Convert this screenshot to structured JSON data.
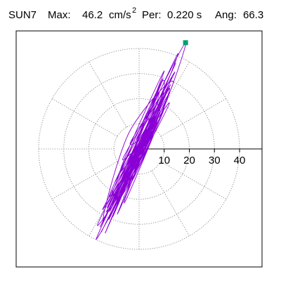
{
  "header": {
    "station": "SUN7",
    "max_label": "Max:",
    "max_value": "46.2",
    "max_unit": "cm/s",
    "max_unit_exp": "2",
    "period_label": "Per:",
    "period_value": "0.220 s",
    "angle_label": "Ang:",
    "angle_value": "66.3"
  },
  "chart_data": {
    "type": "line",
    "title": "",
    "xlabel": "",
    "ylabel": "",
    "coordinate_system": "polar",
    "radius_ticks": [
      10,
      20,
      30,
      40
    ],
    "rlim": [
      0,
      50
    ],
    "spoke_angles_deg": [
      0,
      30,
      60,
      90,
      120,
      150,
      180,
      210,
      240,
      270,
      300,
      330
    ],
    "grid": true,
    "legend": "none",
    "colors": {
      "trace": "#8a00d4",
      "marker": "#00a070",
      "axis": "#000000",
      "grid": "#777777"
    },
    "peak_point": {
      "x": 18.5,
      "y": 42.3,
      "resultant": 46.2,
      "angle_deg": 66.3
    },
    "series": [
      {
        "values": [
          [
            0.5,
            -0.8
          ],
          [
            4.5,
            8.2
          ],
          [
            -2.0,
            -6.5
          ],
          [
            7.8,
            15.0
          ],
          [
            -5.0,
            -11.5
          ],
          [
            3.2,
            4.0
          ],
          [
            -3.5,
            2.5
          ],
          [
            10.5,
            22.0
          ],
          [
            -9.5,
            -22.0
          ],
          [
            2.0,
            -2.5
          ],
          [
            12.0,
            24.0
          ],
          [
            -8.0,
            -16.0
          ],
          [
            6.0,
            12.5
          ],
          [
            -13.0,
            -25.0
          ],
          [
            5.5,
            6.0
          ],
          [
            18.5,
            42.3
          ],
          [
            -1.0,
            4.0
          ],
          [
            14.0,
            30.0
          ],
          [
            -16.5,
            -30.0
          ],
          [
            4.0,
            2.0
          ],
          [
            9.0,
            26.5
          ],
          [
            -14.0,
            -28.5
          ],
          [
            -4.0,
            6.5
          ],
          [
            13.5,
            26.0
          ],
          [
            -11.5,
            -24.5
          ],
          [
            1.5,
            3.0
          ],
          [
            11.0,
            20.0
          ],
          [
            -15.0,
            -33.0
          ],
          [
            7.0,
            11.0
          ],
          [
            -6.0,
            -17.0
          ],
          [
            15.5,
            38.0
          ],
          [
            -12.5,
            -23.0
          ],
          [
            3.0,
            8.0
          ],
          [
            -17.0,
            -36.0
          ],
          [
            12.0,
            18.0
          ],
          [
            -7.5,
            -9.0
          ],
          [
            10.0,
            31.0
          ],
          [
            -9.0,
            -19.0
          ],
          [
            6.5,
            13.0
          ],
          [
            -13.5,
            -33.5
          ],
          [
            4.5,
            9.5
          ],
          [
            -2.5,
            -3.0
          ],
          [
            14.5,
            34.0
          ],
          [
            -10.0,
            -20.0
          ],
          [
            8.5,
            18.5
          ],
          [
            -15.5,
            -31.0
          ],
          [
            3.5,
            6.5
          ],
          [
            -4.5,
            -8.0
          ],
          [
            11.5,
            23.5
          ],
          [
            -12.0,
            -28.0
          ],
          [
            6.0,
            10.0
          ],
          [
            -7.0,
            -14.0
          ],
          [
            9.5,
            28.0
          ],
          [
            -11.0,
            -18.5
          ],
          [
            5.0,
            4.5
          ],
          [
            -3.0,
            -13.0
          ],
          [
            8.0,
            14.5
          ],
          [
            -5.5,
            -19.5
          ],
          [
            13.0,
            28.5
          ],
          [
            -8.5,
            -25.5
          ],
          [
            2.5,
            1.5
          ],
          [
            -6.5,
            -4.0
          ],
          [
            7.5,
            17.5
          ],
          [
            -10.5,
            -27.0
          ],
          [
            4.0,
            12.0
          ],
          [
            -9.5,
            -13.0
          ],
          [
            12.5,
            25.5
          ],
          [
            -14.5,
            -24.0
          ],
          [
            5.5,
            8.0
          ],
          [
            -2.0,
            -9.5
          ],
          [
            10.0,
            16.0
          ],
          [
            -6.0,
            -21.5
          ],
          [
            8.0,
            22.5
          ],
          [
            -12.0,
            -19.0
          ],
          [
            3.0,
            3.5
          ],
          [
            -4.5,
            -11.0
          ],
          [
            6.5,
            9.0
          ],
          [
            -7.0,
            -17.5
          ],
          [
            4.5,
            5.5
          ],
          [
            -3.0,
            -5.5
          ],
          [
            3.5,
            7.0
          ],
          [
            -4.0,
            -7.5
          ],
          [
            2.0,
            3.0
          ],
          [
            -2.5,
            -4.5
          ],
          [
            1.5,
            2.0
          ],
          [
            -1.5,
            -3.0
          ],
          [
            1.0,
            1.5
          ],
          [
            -0.5,
            -1.0
          ],
          [
            0.5,
            0.5
          ],
          [
            0.0,
            0.0
          ]
        ]
      }
    ]
  }
}
